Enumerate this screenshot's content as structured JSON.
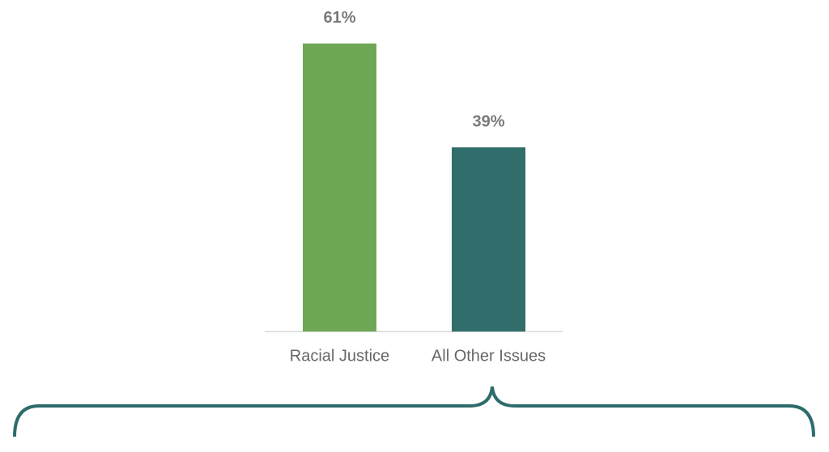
{
  "chart_data": {
    "type": "bar",
    "categories": [
      "Racial Justice",
      "All Other Issues"
    ],
    "values": [
      61,
      39
    ],
    "value_labels": [
      "61%",
      "39%"
    ],
    "colors": [
      "#6ea756",
      "#316d6b"
    ]
  }
}
